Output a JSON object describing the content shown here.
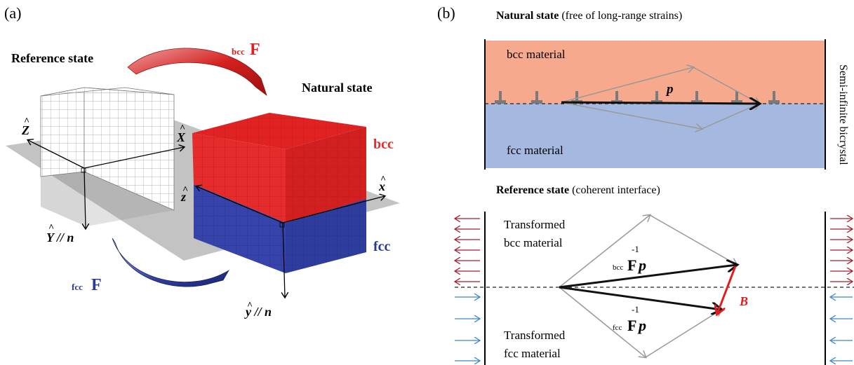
{
  "panel_a": {
    "label": "(a)",
    "reference_state": "Reference state",
    "natural_state": "Natural state",
    "bcc_label": "bcc",
    "fcc_label": "fcc",
    "deform_bcc": {
      "sub": "bcc",
      "main": "F"
    },
    "deform_fcc": {
      "sub": "fcc",
      "main": "F"
    },
    "axis_Z": "Z",
    "axis_X": "X",
    "axis_Y": "Y",
    "axis_Y_suffix": " // n",
    "axis_z": "z",
    "axis_x": "x",
    "axis_y": "y",
    "axis_y_suffix": " // n",
    "hat": "^",
    "colors": {
      "bcc": "#e52b2b",
      "fcc": "#3341a8",
      "arrow_bcc": "#c41a1a",
      "arrow_fcc": "#2a3a90"
    }
  },
  "panel_b": {
    "label": "(b)",
    "natural_title_bold": "Natural state",
    "natural_title_rest": " (free of long-range strains)",
    "bcc_material": "bcc material",
    "fcc_material": "fcc material",
    "vector_p": "p",
    "side_label": "Semi-infinite bicrystal",
    "reference_title_bold": "Reference state",
    "reference_title_rest": " (coherent interface)",
    "transformed_bcc_line1": "Transformed",
    "transformed_bcc_line2": "bcc material",
    "transformed_fcc_line1": "Transformed",
    "transformed_fcc_line2": "fcc material",
    "expr_bcc": {
      "sub": "bcc",
      "main": "F",
      "sup": "-1",
      "vec": "p"
    },
    "expr_fcc": {
      "sub": "fcc",
      "main": "F",
      "sup": "-1",
      "vec": "p"
    },
    "vector_B": "B",
    "colors": {
      "bcc_region": "#f6a98c",
      "fcc_region": "#a5b8e0",
      "burgers": "#e01e1e",
      "arrow_red": "#a51c2c",
      "arrow_blue": "#3a86c8"
    }
  }
}
